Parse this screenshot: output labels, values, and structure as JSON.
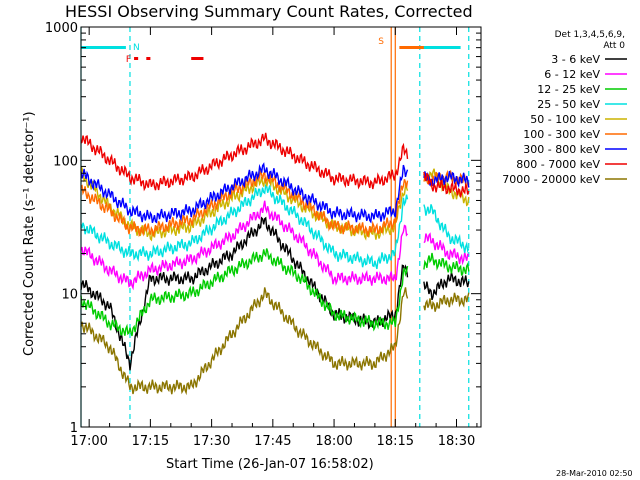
{
  "chart_data": {
    "type": "line",
    "title": "HESSI Observing Summary Count Rates, Corrected",
    "xlabel": "Start Time (26-Jan-07 16:58:02)",
    "ylabel": "Corrected Count Rate (s⁻¹ detector⁻¹)",
    "y_scale": "log",
    "ylim": [
      1,
      1000
    ],
    "xlim": [
      "16:58",
      "18:36"
    ],
    "x_ticks": [
      "17:00",
      "17:15",
      "17:30",
      "17:45",
      "18:00",
      "18:15",
      "18:30"
    ],
    "y_ticks": [
      "1",
      "10",
      "100",
      "1000"
    ],
    "grid": false,
    "legend_title": "Det 1,3,4,5,6,9,\nAtt 0",
    "legend_placement": "right",
    "series": [
      {
        "name": "3 - 6 keV",
        "color": "#000000",
        "x": [
          "16:58",
          "17:05",
          "17:10",
          "17:15",
          "17:25",
          "17:35",
          "17:43",
          "17:52",
          "18:00",
          "18:10",
          "18:15",
          "18:17",
          "18:24",
          "18:28",
          "18:33"
        ],
        "values": [
          12,
          8,
          3,
          13,
          13,
          20,
          35,
          15,
          7,
          6,
          7,
          16,
          10,
          13,
          12
        ]
      },
      {
        "name": "6 - 12 keV",
        "color": "#ff00ff",
        "x": [
          "16:58",
          "17:05",
          "17:10",
          "17:15",
          "17:25",
          "17:35",
          "17:43",
          "17:52",
          "18:00",
          "18:10",
          "18:15",
          "18:17",
          "18:24",
          "18:28",
          "18:33"
        ],
        "values": [
          22,
          15,
          12,
          15,
          18,
          27,
          44,
          25,
          13,
          13,
          13,
          30,
          25,
          20,
          18
        ]
      },
      {
        "name": "12 - 25 keV",
        "color": "#00cc00",
        "x": [
          "16:58",
          "17:05",
          "17:10",
          "17:15",
          "17:25",
          "17:35",
          "17:43",
          "17:52",
          "18:00",
          "18:10",
          "18:15",
          "18:17",
          "18:24",
          "18:28",
          "18:33"
        ],
        "values": [
          9,
          6,
          5,
          9,
          10,
          15,
          20,
          13,
          7,
          6,
          6,
          14,
          18,
          16,
          15
        ]
      },
      {
        "name": "25 - 50 keV",
        "color": "#00e0e0",
        "x": [
          "16:58",
          "17:05",
          "17:10",
          "17:15",
          "17:25",
          "17:35",
          "17:43",
          "17:52",
          "18:00",
          "18:10",
          "18:15",
          "18:17",
          "18:24",
          "18:28",
          "18:33"
        ],
        "values": [
          33,
          24,
          20,
          20,
          24,
          40,
          62,
          36,
          20,
          17,
          20,
          50,
          42,
          27,
          22
        ]
      },
      {
        "name": "50 - 100 keV",
        "color": "#ccb400",
        "x": [
          "16:58",
          "17:05",
          "17:10",
          "17:15",
          "17:25",
          "17:35",
          "17:43",
          "17:52",
          "18:00",
          "18:10",
          "18:15",
          "18:17",
          "18:24",
          "18:28",
          "18:33"
        ],
        "values": [
          80,
          45,
          32,
          28,
          32,
          52,
          72,
          46,
          32,
          28,
          32,
          60,
          80,
          60,
          50
        ]
      },
      {
        "name": "100 - 300 keV",
        "color": "#ff6a00",
        "x": [
          "16:58",
          "17:05",
          "17:10",
          "17:15",
          "17:25",
          "17:35",
          "17:43",
          "17:52",
          "18:00",
          "18:10",
          "18:15",
          "18:17",
          "18:24",
          "18:28",
          "18:33"
        ],
        "values": [
          60,
          42,
          31,
          30,
          36,
          58,
          78,
          50,
          32,
          30,
          35,
          70,
          72,
          75,
          68
        ]
      },
      {
        "name": "300 - 800 keV",
        "color": "#0000ff",
        "x": [
          "16:58",
          "17:05",
          "17:10",
          "17:15",
          "17:25",
          "17:35",
          "17:43",
          "17:52",
          "18:00",
          "18:10",
          "18:15",
          "18:17",
          "18:24",
          "18:28",
          "18:33"
        ],
        "values": [
          80,
          55,
          42,
          37,
          42,
          64,
          86,
          56,
          40,
          38,
          42,
          85,
          70,
          75,
          70
        ]
      },
      {
        "name": "800 - 7000 keV",
        "color": "#ee0000",
        "x": [
          "16:58",
          "17:05",
          "17:10",
          "17:15",
          "17:25",
          "17:35",
          "17:43",
          "17:52",
          "18:00",
          "18:10",
          "18:15",
          "18:17",
          "18:24",
          "18:28",
          "18:33"
        ],
        "values": [
          150,
          100,
          75,
          65,
          75,
          110,
          145,
          100,
          73,
          68,
          78,
          120,
          65,
          62,
          58
        ]
      },
      {
        "name": "7000 - 20000 keV",
        "color": "#8b7500",
        "x": [
          "16:58",
          "17:05",
          "17:10",
          "17:15",
          "17:25",
          "17:35",
          "17:43",
          "17:52",
          "18:00",
          "18:10",
          "18:15",
          "18:17",
          "18:24",
          "18:28",
          "18:33"
        ],
        "values": [
          6,
          4,
          2,
          2,
          2,
          5,
          10,
          5,
          3,
          3,
          4,
          10,
          8,
          9,
          9
        ]
      }
    ],
    "annotations": [
      {
        "label": "N",
        "color": "#00e0e0",
        "x": "17:10"
      },
      {
        "label": "F",
        "color": "#ee0000",
        "x": "17:09"
      },
      {
        "label": "S",
        "color": "#ff6a00",
        "x": "18:14"
      }
    ],
    "attenuator_bars": [
      {
        "color": "#00e0e0",
        "x": [
          "16:58",
          "17:09"
        ]
      },
      {
        "color": "#00e0e0",
        "x": [
          "18:21",
          "18:31"
        ]
      },
      {
        "color": "#ff6a00",
        "x": [
          "18:16",
          "18:22"
        ]
      }
    ],
    "flare_bars": [
      [
        "17:11",
        "17:12"
      ],
      [
        "17:14",
        "17:15"
      ],
      [
        "17:25",
        "17:28"
      ]
    ],
    "vertical_markers": [
      {
        "color": "#00e0e0",
        "style": "dashed",
        "x": "17:10"
      },
      {
        "color": "#00e0e0",
        "style": "dashed",
        "x": "18:21"
      },
      {
        "color": "#00e0e0",
        "style": "dashed",
        "x": "18:33"
      },
      {
        "color": "#ff6a00",
        "style": "solid",
        "x": "18:14"
      },
      {
        "color": "#ff6a00",
        "style": "solid",
        "x": "18:15"
      },
      {
        "color": "#00e0e0",
        "style": "solid",
        "x": "16:58"
      }
    ],
    "data_gap": [
      "18:18",
      "18:22"
    ]
  },
  "footer": {
    "stamp": "28-Mar-2010 02:50"
  }
}
